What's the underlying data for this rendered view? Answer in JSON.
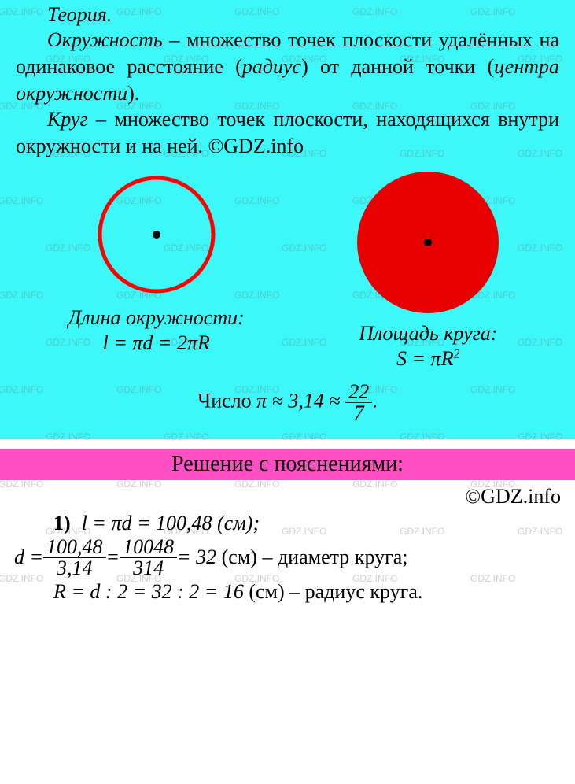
{
  "watermark_text": "GDZ.INFO",
  "theory": {
    "title": "Теория.",
    "para1_pre": "Окружность",
    "para1_mid": " – множество точек плоскости удалённых на одинаковое расстояние (",
    "para1_radius": "радиус",
    "para1_mid2": ") от данной точки (",
    "para1_center": "центра окружности",
    "para1_end": ").",
    "para2_pre": "Круг",
    "para2_rest": " – множество точек плоскости, находящихся внутри окружности и на ней. ©GDZ.info"
  },
  "circles": {
    "left_label": "Длина окружности:",
    "left_formula": "l = πd = 2πR",
    "right_label": "Площадь круга:",
    "right_formula_base": "S = πR",
    "right_formula_exp": "2",
    "outline_color": "#ff0000",
    "fill_color": "#e60000",
    "dot_color": "#000000",
    "bg_color": "#3cf8f8"
  },
  "pi": {
    "prefix": "Число  ",
    "approx": "π ≈ 3,14 ≈ ",
    "num": "22",
    "den": "7",
    "suffix": "."
  },
  "solution": {
    "header": "Решение с пояснениями:",
    "copyright": "©GDZ.info",
    "item_num": "1)",
    "line1": "l = πd = 100,48 (см);",
    "line2_d": "d = ",
    "frac1_num": "100,48",
    "frac1_den": "3,14",
    "eq": " = ",
    "frac2_num": "10048",
    "frac2_den": "314",
    "line2_end": " = 32 (см) – диаметр круга;",
    "line3": "R = d : 2 = 32 : 2 = 16 (см) – радиус круга."
  },
  "colors": {
    "theory_bg": "#3cf8f8",
    "solution_header_bg": "#ff4fc3",
    "page_bg": "#ffffff"
  }
}
